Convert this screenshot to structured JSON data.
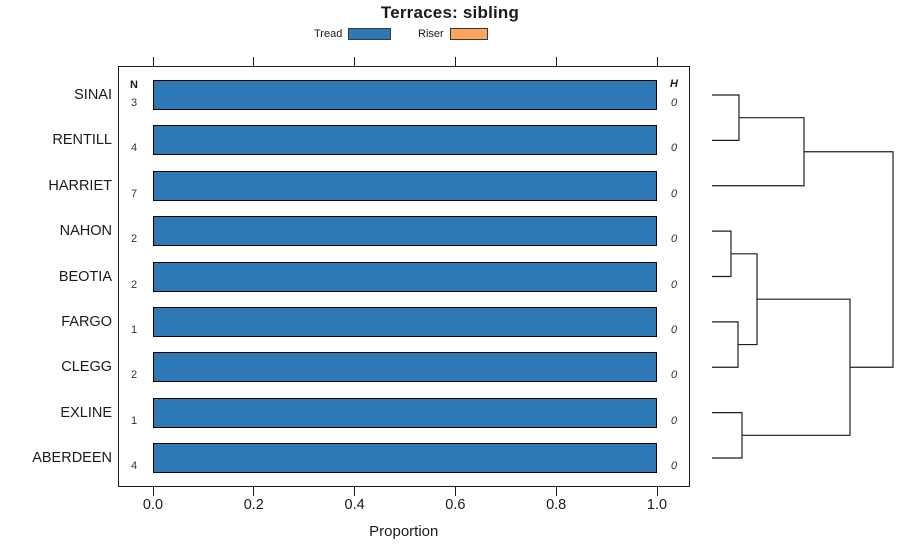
{
  "title": "Terraces: sibling",
  "legend": {
    "items": [
      {
        "label": "Tread",
        "color": "#2E79B5"
      },
      {
        "label": "Riser",
        "color": "#FAA45C"
      }
    ]
  },
  "chart_data": {
    "type": "bar",
    "orientation": "horizontal",
    "title": "Terraces: sibling",
    "xlabel": "Proportion",
    "xlim": [
      0,
      1
    ],
    "x_ticks": [
      0.0,
      0.2,
      0.4,
      0.6,
      0.8,
      1.0
    ],
    "x_tick_labels": [
      "0.0",
      "0.2",
      "0.4",
      "0.6",
      "0.8",
      "1.0"
    ],
    "categories": [
      "SINAI",
      "RENTILL",
      "HARRIET",
      "NAHON",
      "BEOTIA",
      "FARGO",
      "CLEGG",
      "EXLINE",
      "ABERDEEN"
    ],
    "series": [
      {
        "name": "Tread",
        "color": "#2E79B5",
        "values": [
          1.0,
          1.0,
          1.0,
          1.0,
          1.0,
          1.0,
          1.0,
          1.0,
          1.0
        ]
      },
      {
        "name": "Riser",
        "color": "#FAA45C",
        "values": [
          0,
          0,
          0,
          0,
          0,
          0,
          0,
          0,
          0
        ]
      }
    ],
    "n_column": {
      "header": "N",
      "values": [
        3,
        4,
        7,
        2,
        2,
        1,
        2,
        1,
        4
      ]
    },
    "h_column": {
      "header": "H",
      "values": [
        0,
        0,
        0,
        0,
        0,
        0,
        0,
        0,
        0
      ]
    },
    "dendrogram": {
      "leaf_x": 712,
      "merges": [
        {
          "a": "L0",
          "b": "L1",
          "x": 739
        },
        {
          "a": "M0",
          "b": "L2",
          "x": 804
        },
        {
          "a": "L3",
          "b": "L4",
          "x": 731
        },
        {
          "a": "L5",
          "b": "L6",
          "x": 738
        },
        {
          "a": "M2",
          "b": "M3",
          "x": 757
        },
        {
          "a": "L7",
          "b": "L8",
          "x": 742
        },
        {
          "a": "M4",
          "b": "M5",
          "x": 850
        },
        {
          "a": "M1",
          "b": "M6",
          "x": 893
        }
      ]
    }
  }
}
